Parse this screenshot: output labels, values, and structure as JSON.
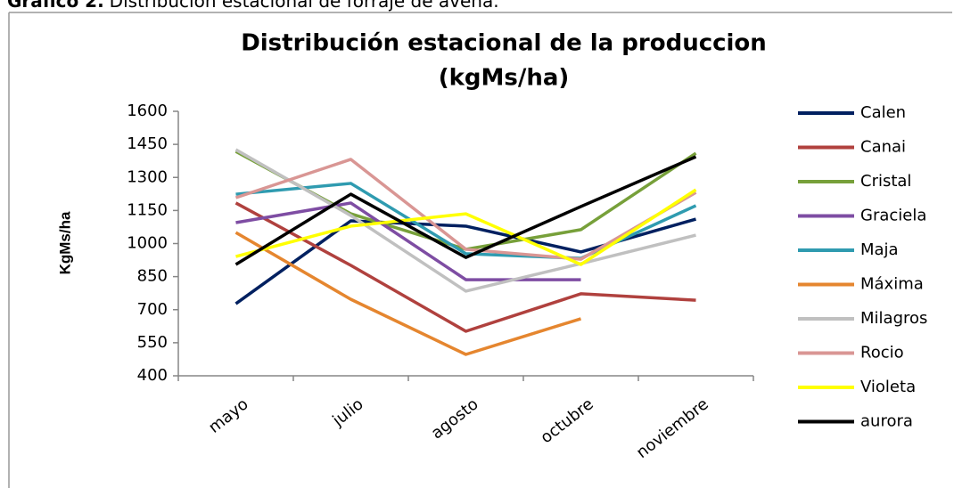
{
  "caption": {
    "label": "Gráfico 2.",
    "text": "Distribución estacional de forraje de avena."
  },
  "chart_data": {
    "type": "line",
    "title": [
      "Distribución estacional de la produccion",
      "(kgMs/ha)"
    ],
    "y_label": "KgMs/ha",
    "categories": [
      "mayo",
      "julio",
      "agosto",
      "octubre",
      "noviembre"
    ],
    "ylim": [
      400,
      1600
    ],
    "yticks": [
      400,
      550,
      700,
      850,
      1000,
      1150,
      1300,
      1450,
      1600
    ],
    "grid": false,
    "legend": "right",
    "series": [
      {
        "name": "Calen",
        "color": "#002060",
        "values": [
          727,
          1103,
          1079,
          962,
          1111
        ]
      },
      {
        "name": "Canai",
        "color": "#b0413e",
        "values": [
          1184,
          901,
          602,
          772,
          743
        ]
      },
      {
        "name": "Cristal",
        "color": "#77a03a",
        "values": [
          1418,
          1135,
          974,
          1063,
          1410
        ]
      },
      {
        "name": "Graciela",
        "color": "#7e4da3",
        "values": [
          1095,
          1184,
          836,
          836,
          null
        ]
      },
      {
        "name": "Maja",
        "color": "#2f9bb0",
        "values": [
          1224,
          1273,
          954,
          933,
          1172
        ]
      },
      {
        "name": "Máxima",
        "color": "#e5862f",
        "values": [
          1050,
          747,
          497,
          659,
          null
        ]
      },
      {
        "name": "Milagros",
        "color": "#c0c0c0",
        "values": [
          1426,
          1127,
          784,
          909,
          1038
        ]
      },
      {
        "name": "Rocio",
        "color": "#d99694",
        "values": [
          1208,
          1382,
          974,
          929,
          1232
        ]
      },
      {
        "name": "Violeta",
        "color": "#ffff00",
        "values": [
          941,
          1079,
          1135,
          905,
          1244
        ]
      },
      {
        "name": "aurora",
        "color": "#000000",
        "values": [
          905,
          1224,
          937,
          1168,
          1394
        ]
      }
    ]
  }
}
